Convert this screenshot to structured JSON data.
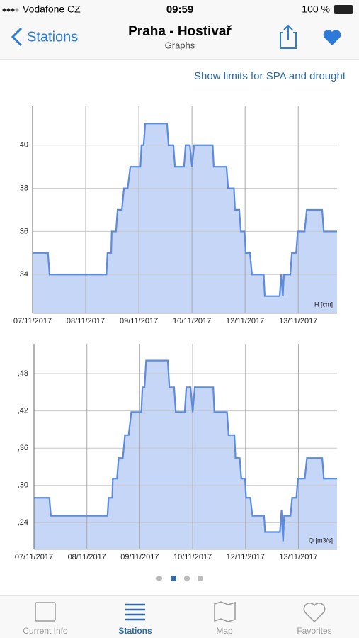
{
  "status_bar": {
    "carrier": "Vodafone CZ",
    "time": "09:59",
    "battery": "100 %"
  },
  "nav": {
    "back": "Stations",
    "title": "Praha - Hostivař",
    "subtitle": "Graphs"
  },
  "link": "Show limits for SPA and drought",
  "chart_data": [
    {
      "type": "area",
      "axis_label": "H [cm]",
      "color": "#5b8be0",
      "fill_color": "#c6d6f6",
      "grid": true,
      "x": [
        0,
        0.29,
        0.32,
        1.39,
        1.41,
        1.48,
        1.49,
        1.57,
        1.6,
        1.68,
        1.72,
        1.79,
        1.84,
        2.03,
        2.05,
        2.09,
        2.12,
        2.53,
        2.56,
        2.65,
        2.68,
        2.85,
        2.88,
        2.96,
        3,
        3.04,
        3.39,
        3.41,
        3.65,
        3.68,
        3.79,
        3.81,
        3.89,
        3.92,
        3.99,
        4.01,
        4.09,
        4.13,
        4.35,
        4.37,
        4.65,
        4.68,
        4.71,
        4.73,
        4.85,
        4.88,
        4.96,
        4.99,
        5.12,
        5.16,
        5.45,
        5.48,
        5.73
      ],
      "values": [
        35,
        35,
        34,
        34,
        35,
        35,
        36,
        36,
        37,
        37,
        38,
        38,
        39,
        39,
        40,
        40,
        41,
        41,
        40,
        40,
        39,
        39,
        40,
        40,
        39,
        40,
        40,
        39,
        39,
        38,
        38,
        37,
        37,
        36,
        36,
        35,
        35,
        34,
        34,
        33,
        33,
        34,
        33,
        34,
        34,
        35,
        35,
        36,
        36,
        37,
        37,
        36,
        36
      ],
      "xlim": [
        0,
        5.73
      ],
      "xticks": [
        {
          "value": 0,
          "label": "07/11/2017"
        },
        {
          "value": 1,
          "label": "08/11/2017"
        },
        {
          "value": 2,
          "label": "09/11/2017"
        },
        {
          "value": 3,
          "label": "10/11/2017"
        },
        {
          "value": 4,
          "label": "12/11/2017"
        },
        {
          "value": 5,
          "label": "13/11/2017"
        }
      ],
      "ylim": [
        32.2,
        41.8
      ],
      "yticks": [
        34,
        36,
        38,
        40
      ]
    },
    {
      "type": "area",
      "axis_label": "Q [m3/s]",
      "color": "#5b8be0",
      "fill_color": "#c6d6f6",
      "grid": true,
      "x": [
        0,
        0.29,
        0.32,
        1.39,
        1.41,
        1.48,
        1.49,
        1.57,
        1.6,
        1.68,
        1.72,
        1.79,
        1.84,
        2.03,
        2.05,
        2.09,
        2.12,
        2.53,
        2.56,
        2.65,
        2.68,
        2.85,
        2.88,
        2.96,
        3,
        3.04,
        3.39,
        3.41,
        3.65,
        3.68,
        3.79,
        3.81,
        3.89,
        3.92,
        3.99,
        4.01,
        4.09,
        4.13,
        4.35,
        4.37,
        4.65,
        4.68,
        4.71,
        4.73,
        4.85,
        4.88,
        4.96,
        4.99,
        5.12,
        5.16,
        5.45,
        5.48,
        5.73
      ],
      "values": [
        0.28,
        0.28,
        0.251,
        0.251,
        0.28,
        0.28,
        0.311,
        0.311,
        0.344,
        0.344,
        0.381,
        0.381,
        0.418,
        0.418,
        0.458,
        0.458,
        0.501,
        0.501,
        0.458,
        0.458,
        0.418,
        0.418,
        0.458,
        0.458,
        0.418,
        0.458,
        0.458,
        0.418,
        0.418,
        0.381,
        0.381,
        0.344,
        0.344,
        0.311,
        0.311,
        0.28,
        0.28,
        0.251,
        0.251,
        0.225,
        0.225,
        0.26,
        0.21,
        0.251,
        0.251,
        0.28,
        0.28,
        0.311,
        0.311,
        0.344,
        0.344,
        0.311,
        0.311
      ],
      "xlim": [
        0,
        5.73
      ],
      "xticks": [
        {
          "value": 0,
          "label": "07/11/2017"
        },
        {
          "value": 1,
          "label": "08/11/2017"
        },
        {
          "value": 2,
          "label": "09/11/2017"
        },
        {
          "value": 3,
          "label": "10/11/2017"
        },
        {
          "value": 4,
          "label": "12/11/2017"
        },
        {
          "value": 5,
          "label": "13/11/2017"
        }
      ],
      "ylim": [
        0.197,
        0.528
      ],
      "yticks": [
        {
          "value": 0.24,
          "label": ",24"
        },
        {
          "value": 0.3,
          "label": ",30"
        },
        {
          "value": 0.36,
          "label": ",36"
        },
        {
          "value": 0.42,
          "label": ",42"
        },
        {
          "value": 0.48,
          "label": ",48"
        }
      ]
    }
  ],
  "tabs": [
    "Current Info",
    "Stations",
    "Map",
    "Favorites"
  ]
}
